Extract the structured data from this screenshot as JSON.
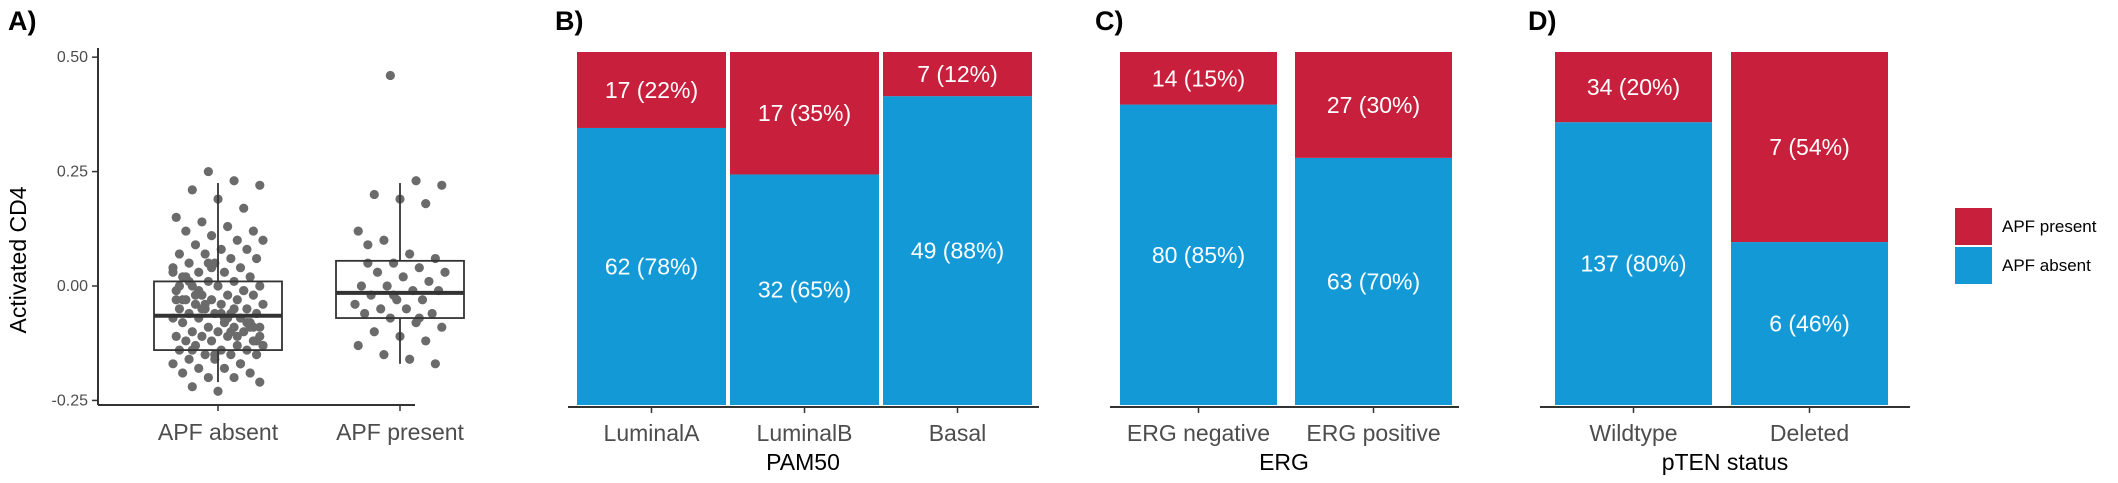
{
  "colors": {
    "present": "#c8203c",
    "absent": "#139ad6",
    "point": "#6b6b6b"
  },
  "legend": {
    "items": [
      {
        "label": "APF present",
        "color": "#c8203c"
      },
      {
        "label": "APF absent",
        "color": "#139ad6"
      }
    ]
  },
  "chart_data": [
    {
      "panel": "A)",
      "type": "scatter",
      "ylabel": "Activated CD4",
      "ylim": [
        -0.26,
        0.52
      ],
      "yticks": [
        -0.25,
        0.0,
        0.25,
        0.5
      ],
      "ytick_labels": [
        "-0.25",
        "0.00",
        "0.25",
        "0.50"
      ],
      "categories": [
        "APF absent",
        "APF present"
      ],
      "boxplot": [
        {
          "category": "APF absent",
          "min": -0.21,
          "q1": -0.14,
          "median": -0.065,
          "q3": 0.01,
          "max": 0.225
        },
        {
          "category": "APF present",
          "min": -0.17,
          "q1": -0.07,
          "median": -0.015,
          "q3": 0.055,
          "max": 0.225
        }
      ],
      "points": {
        "APF absent": [
          0.25,
          0.23,
          0.22,
          0.21,
          0.19,
          0.17,
          0.15,
          0.14,
          0.13,
          0.12,
          0.12,
          0.11,
          0.1,
          0.1,
          0.09,
          0.08,
          0.08,
          0.07,
          0.07,
          0.06,
          0.06,
          0.05,
          0.05,
          0.04,
          0.04,
          0.03,
          0.03,
          0.02,
          0.02,
          0.01,
          0.01,
          0.0,
          0.0,
          0.0,
          -0.01,
          -0.01,
          -0.02,
          -0.02,
          -0.02,
          -0.03,
          -0.03,
          -0.03,
          -0.04,
          -0.04,
          -0.04,
          -0.05,
          -0.05,
          -0.05,
          -0.06,
          -0.06,
          -0.06,
          -0.06,
          -0.07,
          -0.07,
          -0.07,
          -0.08,
          -0.08,
          -0.08,
          -0.09,
          -0.09,
          -0.09,
          -0.1,
          -0.1,
          -0.1,
          -0.11,
          -0.11,
          -0.11,
          -0.12,
          -0.12,
          -0.12,
          -0.13,
          -0.13,
          -0.13,
          -0.14,
          -0.14,
          -0.14,
          -0.15,
          -0.15,
          -0.15,
          -0.16,
          -0.16,
          -0.17,
          -0.17,
          -0.18,
          -0.18,
          -0.19,
          -0.19,
          -0.2,
          -0.2,
          -0.21,
          -0.22,
          -0.23,
          -0.01,
          -0.03,
          -0.05,
          -0.07,
          -0.09,
          0.02,
          0.04,
          -0.11,
          -0.13,
          -0.02,
          -0.06,
          -0.08,
          0.0,
          -0.04,
          -0.1,
          -0.12,
          0.01,
          -0.15,
          -0.17,
          0.03,
          -0.01,
          -0.07,
          -0.09,
          -0.03,
          0.05,
          -0.05,
          -0.11,
          -0.14
        ],
        "APF present": [
          0.46,
          0.23,
          0.22,
          0.2,
          0.19,
          0.18,
          0.12,
          0.1,
          0.07,
          0.06,
          0.05,
          0.05,
          0.04,
          0.03,
          0.03,
          0.02,
          0.01,
          0.0,
          0.0,
          -0.01,
          -0.01,
          -0.02,
          -0.03,
          -0.03,
          -0.04,
          -0.05,
          -0.05,
          -0.06,
          -0.06,
          -0.07,
          -0.08,
          -0.09,
          -0.1,
          -0.11,
          -0.12,
          -0.13,
          -0.15,
          -0.16,
          -0.17,
          0.09,
          -0.02,
          -0.07
        ]
      }
    },
    {
      "panel": "B)",
      "type": "bar",
      "xlabel": "PAM50",
      "categories": [
        "LuminalA",
        "LuminalB",
        "Basal"
      ],
      "series": [
        {
          "name": "APF present",
          "values": [
            17,
            17,
            7
          ],
          "labels": [
            "17 (22%)",
            "17 (35%)",
            "7 (12%)"
          ]
        },
        {
          "name": "APF absent",
          "values": [
            62,
            32,
            49
          ],
          "labels": [
            "62 (78%)",
            "32 (65%)",
            "49 (88%)"
          ]
        }
      ]
    },
    {
      "panel": "C)",
      "type": "bar",
      "xlabel": "ERG",
      "categories": [
        "ERG negative",
        "ERG positive"
      ],
      "series": [
        {
          "name": "APF present",
          "values": [
            14,
            27
          ],
          "labels": [
            "14 (15%)",
            "27 (30%)"
          ]
        },
        {
          "name": "APF absent",
          "values": [
            80,
            63
          ],
          "labels": [
            "80 (85%)",
            "63 (70%)"
          ]
        }
      ]
    },
    {
      "panel": "D)",
      "type": "bar",
      "xlabel": "pTEN status",
      "categories": [
        "Wildtype",
        "Deleted"
      ],
      "series": [
        {
          "name": "APF present",
          "values": [
            34,
            7
          ],
          "labels": [
            "34 (20%)",
            "7 (54%)"
          ]
        },
        {
          "name": "APF absent",
          "values": [
            137,
            6
          ],
          "labels": [
            "137 (80%)",
            "6 (46%)"
          ]
        }
      ]
    }
  ]
}
